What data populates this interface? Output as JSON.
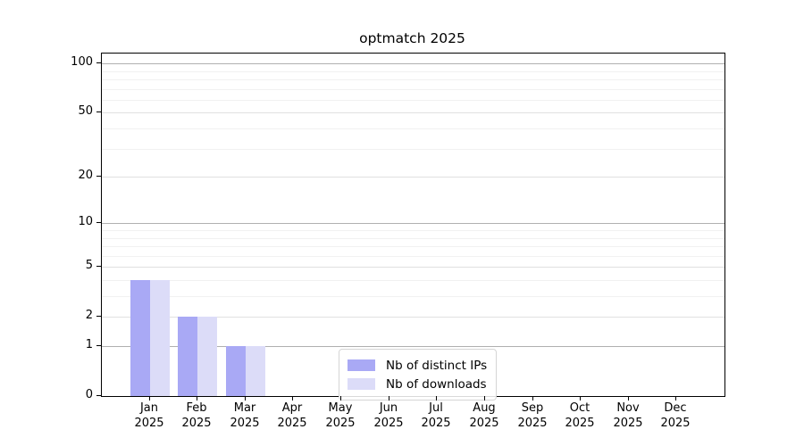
{
  "figure": {
    "background": "#ffffff"
  },
  "chart_data": {
    "type": "bar",
    "title": "optmatch 2025",
    "categories": [
      "Jan",
      "Feb",
      "Mar",
      "Apr",
      "May",
      "Jun",
      "Jul",
      "Aug",
      "Sep",
      "Oct",
      "Nov",
      "Dec"
    ],
    "x_year": "2025",
    "series": [
      {
        "name": "Nb of distinct IPs",
        "color": "#a9a9f5",
        "values": [
          4,
          2,
          1,
          0,
          0,
          0,
          0,
          0,
          0,
          0,
          0,
          0
        ]
      },
      {
        "name": "Nb of downloads",
        "color": "#dcdcf8",
        "values": [
          4,
          2,
          1,
          0,
          0,
          0,
          0,
          0,
          0,
          0,
          0,
          0
        ]
      }
    ],
    "xlabel": "",
    "ylabel": "",
    "yscale": "log1p",
    "ylim": [
      0,
      115
    ],
    "y_ticks": [
      0,
      1,
      2,
      5,
      10,
      20,
      50,
      100
    ],
    "gridlines": {
      "strong": [
        1,
        10,
        100
      ],
      "light": [
        2,
        5,
        20,
        50
      ],
      "minor": [
        3,
        4,
        6,
        7,
        8,
        9,
        30,
        40,
        60,
        70,
        80,
        90
      ]
    },
    "grid": true,
    "legend_position": "lower center",
    "legend_entries": [
      "Nb of distinct IPs",
      "Nb of downloads"
    ],
    "colors": {
      "grid_strong": "#b0b0b0",
      "grid_light": "#e0e0e0",
      "grid_minor": "#f1f1f1",
      "spine": "#000000",
      "legend_border": "#d5d5d5"
    }
  }
}
